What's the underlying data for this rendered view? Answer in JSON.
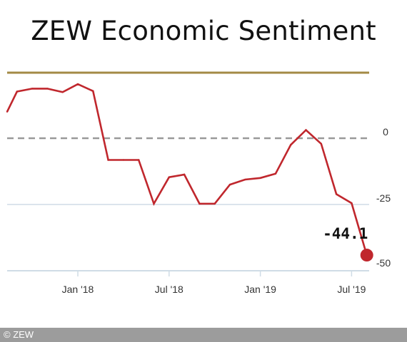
{
  "title": "ZEW Economic Sentiment",
  "footer": "© ZEW",
  "colors": {
    "line": "#c0272d",
    "topRule": "#a38a45",
    "zero": "#999999",
    "grid": "#cfdce6"
  },
  "chart_data": {
    "type": "line",
    "title": "ZEW Economic Sentiment",
    "xlabel": "",
    "ylabel": "",
    "x_ticks": [
      "Jan '18",
      "Jul '18",
      "Jan '19",
      "Jul '19"
    ],
    "y_ticks": [
      "0",
      "-25",
      "-50"
    ],
    "grid": true,
    "series": [
      {
        "x": [
          "2017-08",
          "2017-09",
          "2017-10",
          "2017-11",
          "2017-12",
          "2018-01",
          "2018-02",
          "2018-03",
          "2018-04",
          "2018-05",
          "2018-06",
          "2018-07",
          "2018-08",
          "2018-09",
          "2018-10",
          "2018-11",
          "2018-12",
          "2019-01",
          "2019-02",
          "2019-03",
          "2019-04",
          "2019-05",
          "2019-06",
          "2019-07",
          "2019-08"
        ],
        "values": [
          10.0,
          17.6,
          18.7,
          18.7,
          17.4,
          20.4,
          17.8,
          -8.2,
          -8.2,
          -8.2,
          -24.7,
          -14.7,
          -13.7,
          -24.7,
          -24.7,
          -17.5,
          -15.6,
          -15.0,
          -13.4,
          -2.5,
          3.1,
          -2.1,
          -21.1,
          -24.5,
          -44.1
        ]
      }
    ],
    "last_value_label": "-44.1"
  }
}
